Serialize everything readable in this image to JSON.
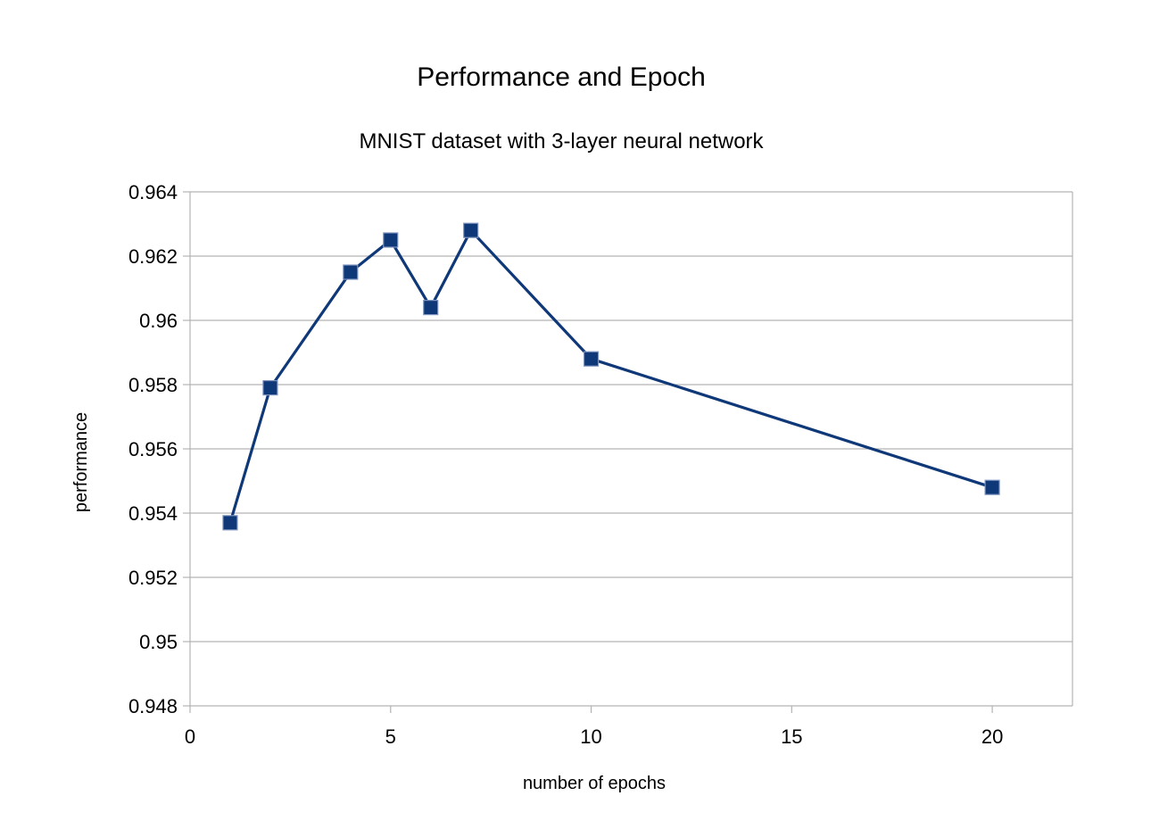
{
  "chart_data": {
    "type": "line",
    "title": "Performance and Epoch",
    "subtitle": "MNIST dataset with 3-layer neural network",
    "xlabel": "number of epochs",
    "ylabel": "performance",
    "xlim": [
      0,
      22
    ],
    "ylim": [
      0.948,
      0.964
    ],
    "x_ticks": [
      0,
      5,
      10,
      15,
      20
    ],
    "x_tick_labels": [
      "0",
      "5",
      "10",
      "15",
      "20"
    ],
    "y_ticks": [
      0.948,
      0.95,
      0.952,
      0.954,
      0.956,
      0.958,
      0.96,
      0.962,
      0.964
    ],
    "y_tick_labels": [
      "0.948",
      "0.95",
      "0.952",
      "0.954",
      "0.956",
      "0.958",
      "0.96",
      "0.962",
      "0.964"
    ],
    "grid": "horizontal",
    "legend": "none",
    "series": [
      {
        "color": "#0f3878",
        "marker": "square",
        "points": [
          {
            "x": 1,
            "y": 0.9537
          },
          {
            "x": 2,
            "y": 0.9579
          },
          {
            "x": 4,
            "y": 0.9615
          },
          {
            "x": 5,
            "y": 0.9625
          },
          {
            "x": 6,
            "y": 0.9604
          },
          {
            "x": 7,
            "y": 0.9628
          },
          {
            "x": 10,
            "y": 0.9588
          },
          {
            "x": 20,
            "y": 0.9548
          }
        ]
      }
    ],
    "colors": {
      "grid": "#b3b3b3",
      "axis": "#b3b3b3",
      "text": "#000000"
    }
  }
}
